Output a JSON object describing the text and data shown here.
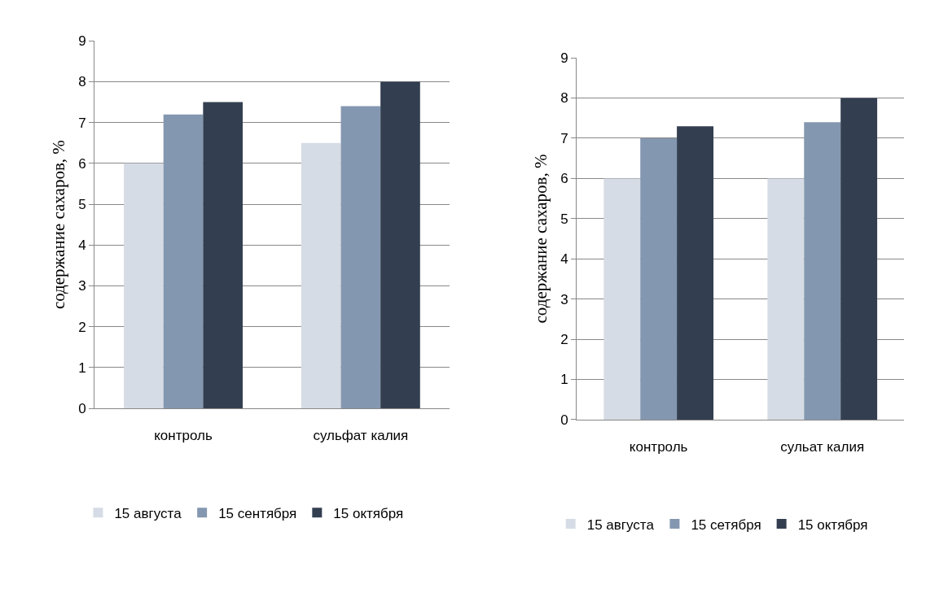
{
  "chart_data": [
    {
      "type": "bar",
      "ylabel": "содержание сахаров, %",
      "categories": [
        "контроль",
        "сульфат калия"
      ],
      "series": [
        {
          "name": "15 августа",
          "color": "#d6dce5",
          "values": [
            6,
            6.5
          ]
        },
        {
          "name": "15 сентября",
          "color": "#8497b0",
          "values": [
            7.2,
            7.4
          ]
        },
        {
          "name": "15 октября",
          "color": "#333f50",
          "values": [
            7.5,
            8
          ]
        }
      ],
      "ylim": [
        0,
        9
      ],
      "yticks": [
        0,
        1,
        2,
        3,
        4,
        5,
        6,
        7,
        8,
        9
      ],
      "grid": "y",
      "legend": "bottom"
    },
    {
      "type": "bar",
      "ylabel": "содержание сахаров, %",
      "categories": [
        "контроль",
        "сульат калия"
      ],
      "series": [
        {
          "name": "15 августа",
          "color": "#d6dce5",
          "values": [
            6,
            6
          ]
        },
        {
          "name": "15 сетября",
          "color": "#8497b0",
          "values": [
            7,
            7.4
          ]
        },
        {
          "name": "15 октября",
          "color": "#333f50",
          "values": [
            7.3,
            8
          ]
        }
      ],
      "ylim": [
        0,
        9
      ],
      "yticks": [
        0,
        1,
        2,
        3,
        4,
        5,
        6,
        7,
        8,
        9
      ],
      "grid": "y",
      "legend": "bottom"
    }
  ]
}
